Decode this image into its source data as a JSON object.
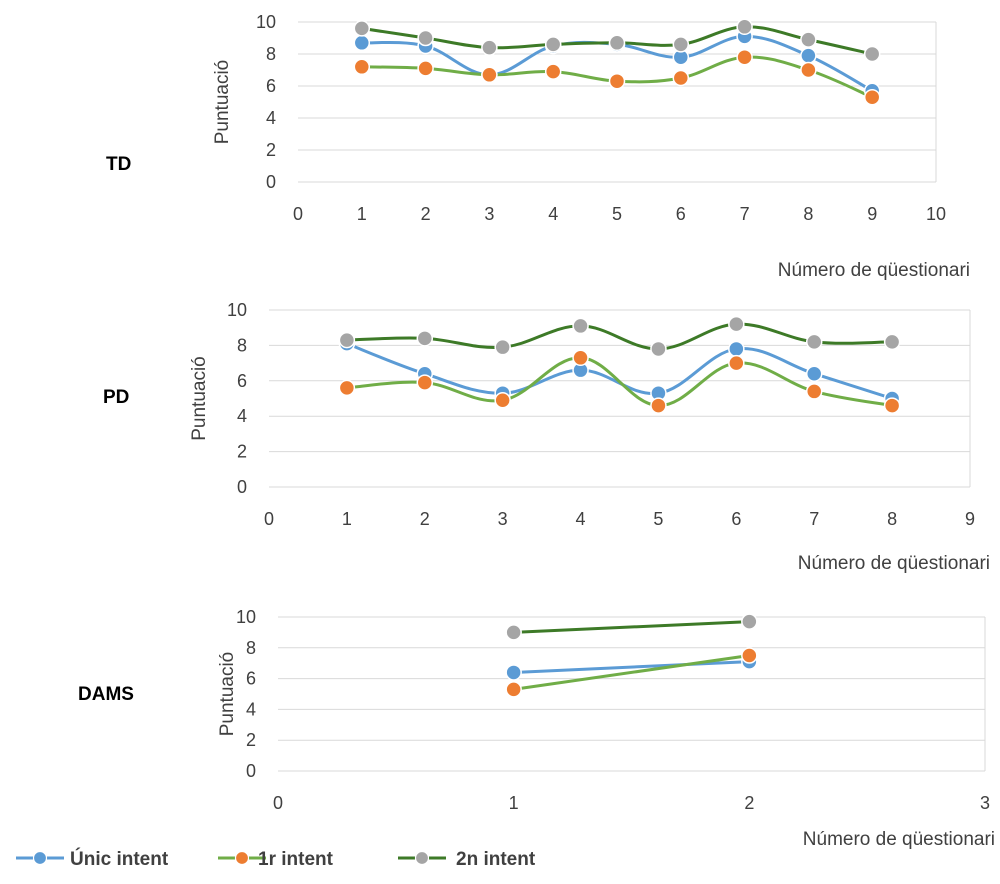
{
  "colors": {
    "unic_line": "#5b9bd5",
    "unic_marker": "#5b9bd5",
    "r1_line": "#70ad47",
    "r1_marker": "#ed7d31",
    "n2_line": "#3d7a27",
    "n2_marker": "#a5a5a5",
    "grid": "#d9d9d9",
    "text": "#404040"
  },
  "legend": [
    {
      "key": "unic",
      "label": "Únic intent"
    },
    {
      "key": "r1",
      "label": "1r intent"
    },
    {
      "key": "n2",
      "label": "2n intent"
    }
  ],
  "chart_data": [
    {
      "panel_label": "TD",
      "type": "line",
      "smooth": true,
      "xlabel": "Número de qüestionari",
      "ylabel": "Puntuació",
      "xlim": [
        0,
        10
      ],
      "ylim": [
        0,
        10
      ],
      "xticks": [
        0,
        1,
        2,
        3,
        4,
        5,
        6,
        7,
        8,
        9,
        10
      ],
      "yticks": [
        0,
        2,
        4,
        6,
        8,
        10
      ],
      "grid": true,
      "x": [
        1,
        2,
        3,
        4,
        5,
        6,
        7,
        8,
        9
      ],
      "series": [
        {
          "key": "unic",
          "name": "Únic intent",
          "values": [
            8.7,
            8.5,
            6.7,
            8.5,
            8.6,
            7.8,
            9.1,
            7.9,
            5.7
          ]
        },
        {
          "key": "r1",
          "name": "1r intent",
          "values": [
            7.2,
            7.1,
            6.7,
            6.9,
            6.3,
            6.5,
            7.8,
            7.0,
            5.3
          ]
        },
        {
          "key": "n2",
          "name": "2n intent",
          "values": [
            9.6,
            9.0,
            8.4,
            8.6,
            8.7,
            8.6,
            9.7,
            8.9,
            8.0
          ]
        }
      ]
    },
    {
      "panel_label": "PD",
      "type": "line",
      "smooth": true,
      "xlabel": "Número de qüestionari",
      "ylabel": "Puntuació",
      "xlim": [
        0,
        9
      ],
      "ylim": [
        0,
        10
      ],
      "xticks": [
        0,
        1,
        2,
        3,
        4,
        5,
        6,
        7,
        8,
        9
      ],
      "yticks": [
        0,
        2,
        4,
        6,
        8,
        10
      ],
      "grid": true,
      "x": [
        1,
        2,
        3,
        4,
        5,
        6,
        7,
        8
      ],
      "series": [
        {
          "key": "unic",
          "name": "Únic intent",
          "values": [
            8.1,
            6.4,
            5.3,
            6.6,
            5.3,
            7.8,
            6.4,
            5.0
          ]
        },
        {
          "key": "r1",
          "name": "1r intent",
          "values": [
            5.6,
            5.9,
            4.9,
            7.3,
            4.6,
            7.0,
            5.4,
            4.6
          ]
        },
        {
          "key": "n2",
          "name": "2n intent",
          "values": [
            8.3,
            8.4,
            7.9,
            9.1,
            7.8,
            9.2,
            8.2,
            8.2
          ]
        }
      ]
    },
    {
      "panel_label": "DAMS",
      "type": "line",
      "smooth": false,
      "xlabel": "Número de qüestionari",
      "ylabel": "Puntuació",
      "xlim": [
        0,
        3
      ],
      "ylim": [
        0,
        10
      ],
      "xticks": [
        0,
        1,
        2,
        3
      ],
      "yticks": [
        0,
        2,
        4,
        6,
        8,
        10
      ],
      "grid": true,
      "x": [
        1,
        2
      ],
      "series": [
        {
          "key": "unic",
          "name": "Únic intent",
          "values": [
            6.4,
            7.1
          ]
        },
        {
          "key": "r1",
          "name": "1r intent",
          "values": [
            5.3,
            7.5
          ]
        },
        {
          "key": "n2",
          "name": "2n intent",
          "values": [
            9.0,
            9.7
          ]
        }
      ]
    }
  ]
}
